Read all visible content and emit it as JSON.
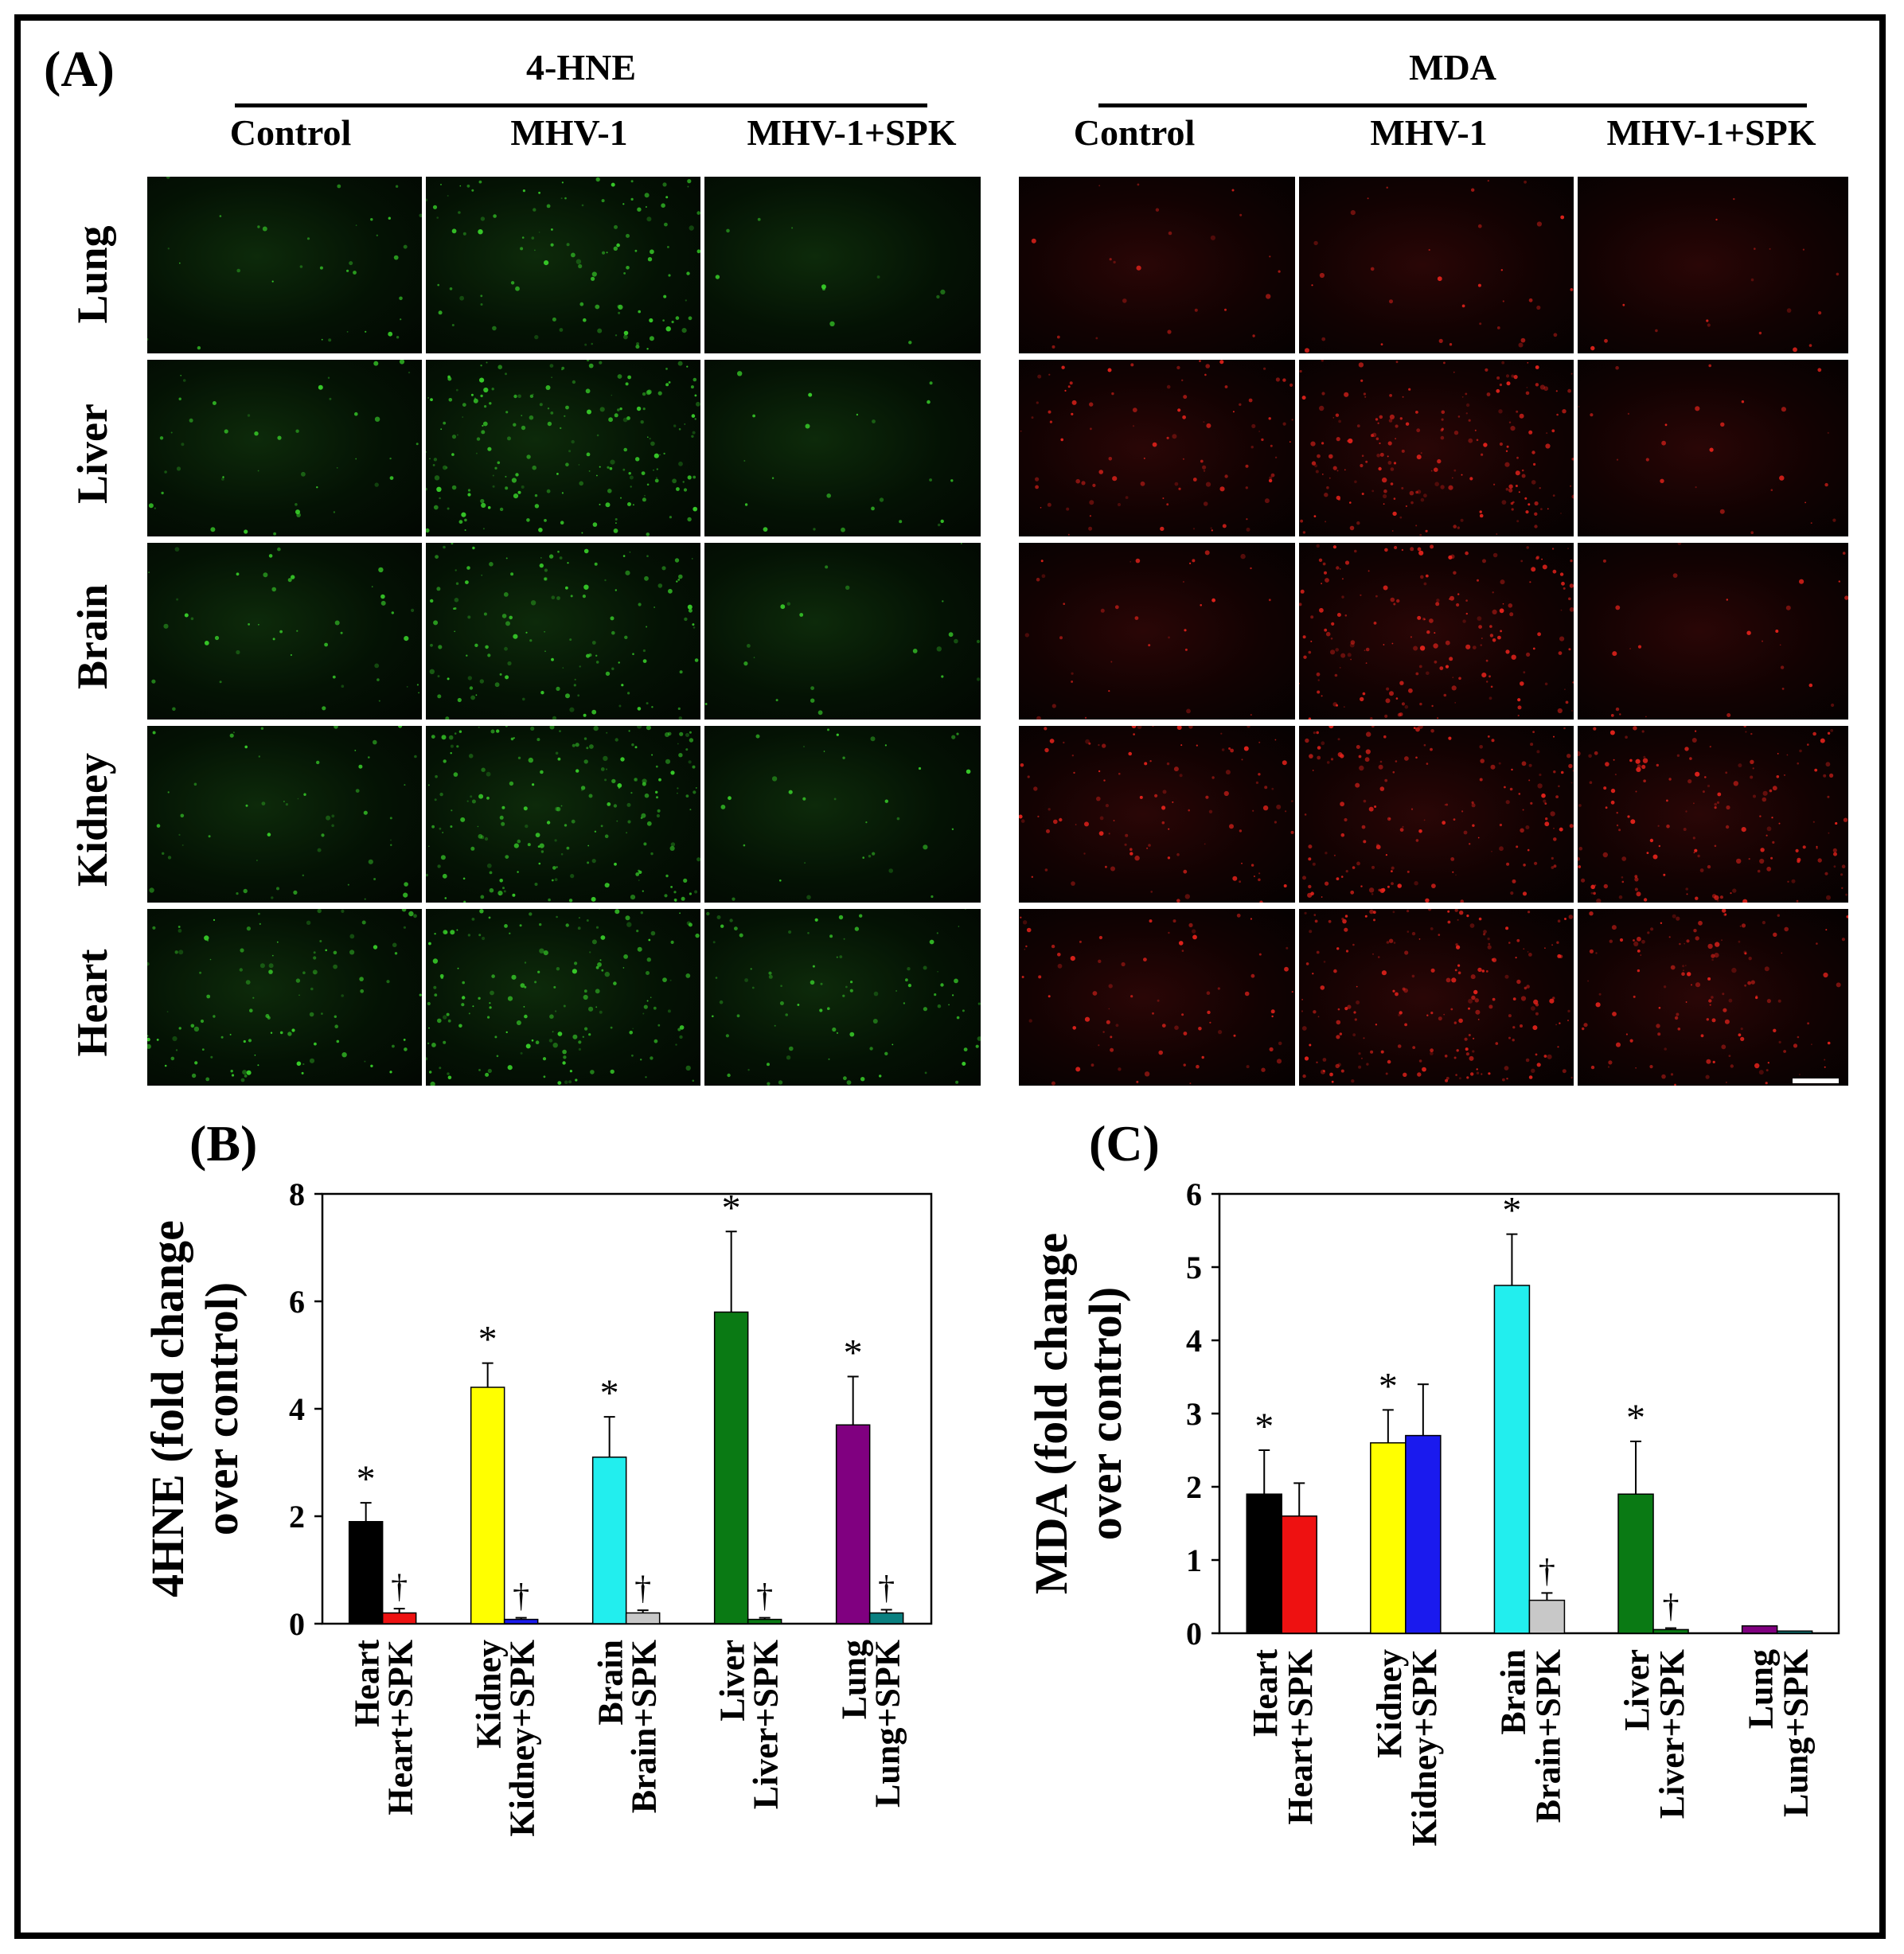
{
  "panel_labels": {
    "a": "(A)",
    "b": "(B)",
    "c": "(C)"
  },
  "panel_a": {
    "groups": [
      {
        "title": "4-HNE",
        "columns": [
          "Control",
          "MHV-1",
          "MHV-1+SPK"
        ],
        "color": "#39d12a"
      },
      {
        "title": "MDA",
        "columns": [
          "Control",
          "MHV-1",
          "MHV-1+SPK"
        ],
        "color": "#e8231c"
      }
    ],
    "rows": [
      "Lung",
      "Liver",
      "Brain",
      "Kidney",
      "Heart"
    ]
  },
  "chart_data": [
    {
      "type": "bar",
      "panel": "(B)",
      "ylabel": "4HNE (fold change over control)",
      "ylim": [
        0,
        8
      ],
      "yticks": [
        "0",
        "2",
        "4",
        "6",
        "8"
      ],
      "categories": [
        "Heart",
        "Heart+SPK",
        "Kidney",
        "Kidney+SPK",
        "Brain",
        "Brain+SPK",
        "Liver",
        "Liver+SPK",
        "Lung",
        "Lung+SPK"
      ],
      "values": [
        1.9,
        0.2,
        4.4,
        0.08,
        3.1,
        0.2,
        5.8,
        0.08,
        3.7,
        0.2
      ],
      "errors": [
        0.35,
        0.08,
        0.45,
        0.03,
        0.75,
        0.05,
        1.5,
        0.03,
        0.9,
        0.06
      ],
      "colors": [
        "#000000",
        "#ee1111",
        "#ffff00",
        "#1a1aee",
        "#22eeee",
        "#c8c8c8",
        "#0a7a14",
        "#0a7a14",
        "#800080",
        "#0a8080"
      ],
      "markers": [
        "*",
        "†",
        "*",
        "†",
        "*",
        "†",
        "*",
        "†",
        "*",
        "†"
      ],
      "grid": false
    },
    {
      "type": "bar",
      "panel": "(C)",
      "ylabel": "MDA (fold change over control)",
      "ylim": [
        0,
        6
      ],
      "yticks": [
        "0",
        "1",
        "2",
        "3",
        "4",
        "5",
        "6"
      ],
      "categories": [
        "Heart",
        "Heart+SPK",
        "Kidney",
        "Kidney+SPK",
        "Brain",
        "Brain+SPK",
        "Liver",
        "Liver+SPK",
        "Lung",
        "Lung+SPK"
      ],
      "values": [
        1.9,
        1.6,
        2.6,
        2.7,
        4.75,
        0.45,
        1.9,
        0.05,
        0.1,
        0.03
      ],
      "errors": [
        0.6,
        0.45,
        0.45,
        0.7,
        0.7,
        0.1,
        0.72,
        0.02,
        0.0,
        0.0
      ],
      "colors": [
        "#000000",
        "#ee1111",
        "#ffff00",
        "#1a1aee",
        "#22eeee",
        "#c8c8c8",
        "#0a7a14",
        "#0a7a14",
        "#800080",
        "#0a8080"
      ],
      "markers": [
        "*",
        "",
        "*",
        "",
        "*",
        "†",
        "*",
        "†",
        "",
        ""
      ],
      "grid": false
    }
  ]
}
